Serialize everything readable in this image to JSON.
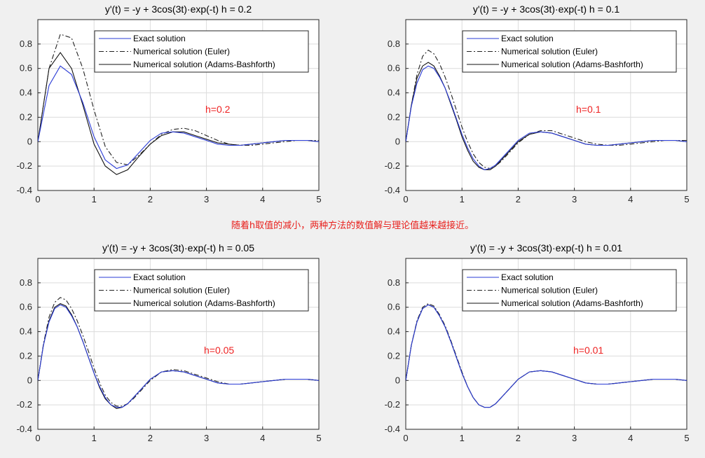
{
  "caption": "随着h取值的减小，两种方法的数值解与理论值越来越接近。",
  "colors": {
    "exact": "#2a3bd6",
    "euler": "#222222",
    "ab": "#111111",
    "annotation": "#ee2222",
    "background": "#f0f0f0",
    "axes": "#ffffff",
    "grid": "#dcdcdc"
  },
  "chart_data": [
    {
      "type": "line",
      "title": "y'(t) = -y + 3cos(3t)·exp(-t)    h = 0.2",
      "annotation": "h=0.2",
      "xlim": [
        0,
        5
      ],
      "ylim": [
        -0.4,
        1.0
      ],
      "xticks": [
        0,
        1,
        2,
        3,
        4,
        5
      ],
      "yticks": [
        -0.4,
        -0.2,
        0,
        0.2,
        0.4,
        0.6,
        0.8
      ],
      "grid": true,
      "legend_position": "top",
      "series": [
        {
          "name": "Exact solution",
          "key": "exact",
          "style": "solid",
          "x": [
            0,
            0.2,
            0.4,
            0.6,
            0.8,
            1.0,
            1.2,
            1.4,
            1.6,
            1.8,
            2.0,
            2.2,
            2.4,
            2.6,
            2.8,
            3.0,
            3.2,
            3.4,
            3.6,
            3.8,
            4.0,
            4.2,
            4.4,
            4.6,
            4.8,
            5.0
          ],
          "y": [
            0,
            0.46,
            0.62,
            0.55,
            0.32,
            0.04,
            -0.15,
            -0.22,
            -0.19,
            -0.09,
            0.01,
            0.07,
            0.08,
            0.07,
            0.04,
            0.01,
            -0.02,
            -0.03,
            -0.03,
            -0.02,
            -0.01,
            0,
            0.01,
            0.01,
            0.01,
            0
          ]
        },
        {
          "name": "Numerical solution (Euler)",
          "key": "euler",
          "style": "dashdot",
          "x": [
            0,
            0.2,
            0.4,
            0.6,
            0.8,
            1.0,
            1.2,
            1.4,
            1.6,
            1.8,
            2.0,
            2.2,
            2.4,
            2.6,
            2.8,
            3.0,
            3.2,
            3.4,
            3.6,
            3.8,
            4.0,
            4.2,
            4.4,
            4.6,
            4.8,
            5.0
          ],
          "y": [
            0,
            0.6,
            0.88,
            0.85,
            0.6,
            0.26,
            -0.04,
            -0.17,
            -0.19,
            -0.11,
            -0.02,
            0.06,
            0.1,
            0.11,
            0.09,
            0.05,
            0.01,
            -0.02,
            -0.03,
            -0.03,
            -0.02,
            -0.01,
            0,
            0.01,
            0.01,
            0.01
          ]
        },
        {
          "name": "Numerical solution (Adams-Bashforth)",
          "key": "ab",
          "style": "solid",
          "x": [
            0,
            0.2,
            0.4,
            0.6,
            0.8,
            1.0,
            1.2,
            1.4,
            1.6,
            1.8,
            2.0,
            2.2,
            2.4,
            2.6,
            2.8,
            3.0,
            3.2,
            3.4,
            3.6,
            3.8,
            4.0,
            4.2,
            4.4,
            4.6,
            4.8,
            5.0
          ],
          "y": [
            0,
            0.6,
            0.73,
            0.6,
            0.3,
            -0.02,
            -0.2,
            -0.27,
            -0.23,
            -0.12,
            -0.02,
            0.05,
            0.08,
            0.08,
            0.05,
            0.02,
            -0.01,
            -0.02,
            -0.03,
            -0.02,
            -0.01,
            0,
            0.01,
            0.01,
            0.01,
            0
          ]
        }
      ]
    },
    {
      "type": "line",
      "title": "y'(t) = -y + 3cos(3t)·exp(-t)    h = 0.1",
      "annotation": "h=0.1",
      "xlim": [
        0,
        5
      ],
      "ylim": [
        -0.4,
        1.0
      ],
      "xticks": [
        0,
        1,
        2,
        3,
        4,
        5
      ],
      "yticks": [
        -0.4,
        -0.2,
        0,
        0.2,
        0.4,
        0.6,
        0.8
      ],
      "grid": true,
      "legend_position": "top-right",
      "series": [
        {
          "name": "Exact solution",
          "key": "exact",
          "style": "solid",
          "x": [
            0,
            0.1,
            0.2,
            0.3,
            0.4,
            0.5,
            0.6,
            0.7,
            0.8,
            0.9,
            1.0,
            1.1,
            1.2,
            1.3,
            1.4,
            1.5,
            1.6,
            1.7,
            1.8,
            2.0,
            2.2,
            2.4,
            2.6,
            2.8,
            3.0,
            3.2,
            3.4,
            3.6,
            3.8,
            4.0,
            4.2,
            4.4,
            4.6,
            4.8,
            5.0
          ],
          "y": [
            0,
            0.29,
            0.48,
            0.59,
            0.62,
            0.6,
            0.53,
            0.44,
            0.32,
            0.19,
            0.06,
            -0.05,
            -0.14,
            -0.2,
            -0.23,
            -0.22,
            -0.19,
            -0.14,
            -0.09,
            0.01,
            0.07,
            0.08,
            0.07,
            0.04,
            0.01,
            -0.02,
            -0.03,
            -0.03,
            -0.02,
            -0.01,
            0,
            0.01,
            0.01,
            0.01,
            0
          ]
        },
        {
          "name": "Numerical solution (Euler)",
          "key": "euler",
          "style": "dashdot",
          "x": [
            0,
            0.1,
            0.2,
            0.3,
            0.4,
            0.5,
            0.6,
            0.7,
            0.8,
            0.9,
            1.0,
            1.1,
            1.2,
            1.3,
            1.4,
            1.5,
            1.6,
            1.7,
            1.8,
            2.0,
            2.2,
            2.4,
            2.6,
            2.8,
            3.0,
            3.2,
            3.4,
            3.6,
            3.8,
            4.0,
            4.2,
            4.4,
            4.6,
            4.8,
            5.0
          ],
          "y": [
            0,
            0.3,
            0.55,
            0.7,
            0.75,
            0.72,
            0.64,
            0.53,
            0.4,
            0.26,
            0.12,
            0,
            -0.1,
            -0.17,
            -0.21,
            -0.22,
            -0.2,
            -0.16,
            -0.11,
            -0.01,
            0.06,
            0.09,
            0.09,
            0.06,
            0.03,
            0,
            -0.02,
            -0.03,
            -0.03,
            -0.02,
            -0.01,
            0,
            0.01,
            0.01,
            0.01
          ]
        },
        {
          "name": "Numerical solution (Adams-Bashforth)",
          "key": "ab",
          "style": "solid",
          "x": [
            0,
            0.1,
            0.2,
            0.3,
            0.4,
            0.5,
            0.6,
            0.7,
            0.8,
            0.9,
            1.0,
            1.1,
            1.2,
            1.3,
            1.4,
            1.5,
            1.6,
            1.7,
            1.8,
            2.0,
            2.2,
            2.4,
            2.6,
            2.8,
            3.0,
            3.2,
            3.4,
            3.6,
            3.8,
            4.0,
            4.2,
            4.4,
            4.6,
            4.8,
            5.0
          ],
          "y": [
            0,
            0.3,
            0.52,
            0.62,
            0.65,
            0.62,
            0.54,
            0.44,
            0.31,
            0.18,
            0.04,
            -0.07,
            -0.16,
            -0.21,
            -0.23,
            -0.23,
            -0.2,
            -0.15,
            -0.1,
            0,
            0.06,
            0.08,
            0.07,
            0.04,
            0.01,
            -0.02,
            -0.03,
            -0.03,
            -0.02,
            -0.01,
            0,
            0.01,
            0.01,
            0.01,
            0
          ]
        }
      ]
    },
    {
      "type": "line",
      "title": "y'(t) = -y + 3cos(3t)·exp(-t)    h = 0.05",
      "annotation": "h=0.05",
      "xlim": [
        0,
        5
      ],
      "ylim": [
        -0.4,
        1.0
      ],
      "xticks": [
        0,
        1,
        2,
        3,
        4,
        5
      ],
      "yticks": [
        -0.4,
        -0.2,
        0,
        0.2,
        0.4,
        0.6,
        0.8
      ],
      "grid": true,
      "legend_position": "top",
      "series": [
        {
          "name": "Exact solution",
          "key": "exact",
          "style": "solid",
          "x": [
            0,
            0.1,
            0.2,
            0.3,
            0.4,
            0.5,
            0.6,
            0.7,
            0.8,
            0.9,
            1.0,
            1.1,
            1.2,
            1.3,
            1.4,
            1.5,
            1.6,
            1.7,
            1.8,
            2.0,
            2.2,
            2.4,
            2.6,
            2.8,
            3.0,
            3.2,
            3.4,
            3.6,
            3.8,
            4.0,
            4.2,
            4.4,
            4.6,
            4.8,
            5.0
          ],
          "y": [
            0,
            0.29,
            0.48,
            0.59,
            0.62,
            0.6,
            0.53,
            0.44,
            0.32,
            0.19,
            0.06,
            -0.05,
            -0.14,
            -0.2,
            -0.22,
            -0.22,
            -0.19,
            -0.14,
            -0.09,
            0.01,
            0.07,
            0.08,
            0.07,
            0.04,
            0.01,
            -0.02,
            -0.03,
            -0.03,
            -0.02,
            -0.01,
            0,
            0.01,
            0.01,
            0.01,
            0
          ]
        },
        {
          "name": "Numerical solution (Euler)",
          "key": "euler",
          "style": "dashdot",
          "x": [
            0,
            0.1,
            0.2,
            0.3,
            0.4,
            0.5,
            0.6,
            0.7,
            0.8,
            0.9,
            1.0,
            1.1,
            1.2,
            1.3,
            1.4,
            1.5,
            1.6,
            1.7,
            1.8,
            2.0,
            2.2,
            2.4,
            2.6,
            2.8,
            3.0,
            3.2,
            3.4,
            3.6,
            3.8,
            4.0,
            4.2,
            4.4,
            4.6,
            4.8,
            5.0
          ],
          "y": [
            0,
            0.3,
            0.52,
            0.64,
            0.68,
            0.66,
            0.59,
            0.49,
            0.37,
            0.24,
            0.1,
            -0.02,
            -0.12,
            -0.18,
            -0.21,
            -0.21,
            -0.19,
            -0.15,
            -0.1,
            0,
            0.07,
            0.09,
            0.08,
            0.05,
            0.02,
            -0.01,
            -0.03,
            -0.03,
            -0.02,
            -0.01,
            0,
            0.01,
            0.01,
            0.01,
            0
          ]
        },
        {
          "name": "Numerical solution (Adams-Bashforth)",
          "key": "ab",
          "style": "solid",
          "x": [
            0,
            0.1,
            0.2,
            0.3,
            0.4,
            0.5,
            0.6,
            0.7,
            0.8,
            0.9,
            1.0,
            1.1,
            1.2,
            1.3,
            1.4,
            1.5,
            1.6,
            1.7,
            1.8,
            2.0,
            2.2,
            2.4,
            2.6,
            2.8,
            3.0,
            3.2,
            3.4,
            3.6,
            3.8,
            4.0,
            4.2,
            4.4,
            4.6,
            4.8,
            5.0
          ],
          "y": [
            0,
            0.29,
            0.49,
            0.6,
            0.63,
            0.61,
            0.54,
            0.44,
            0.32,
            0.19,
            0.06,
            -0.06,
            -0.15,
            -0.2,
            -0.23,
            -0.22,
            -0.19,
            -0.14,
            -0.09,
            0.01,
            0.07,
            0.08,
            0.07,
            0.04,
            0.01,
            -0.02,
            -0.03,
            -0.03,
            -0.02,
            -0.01,
            0,
            0.01,
            0.01,
            0.01,
            0
          ]
        }
      ]
    },
    {
      "type": "line",
      "title": "y'(t) = -y + 3cos(3t)·exp(-t)    h = 0.01",
      "annotation": "h=0.01",
      "xlim": [
        0,
        5
      ],
      "ylim": [
        -0.4,
        1.0
      ],
      "xticks": [
        0,
        1,
        2,
        3,
        4,
        5
      ],
      "yticks": [
        -0.4,
        -0.2,
        0,
        0.2,
        0.4,
        0.6,
        0.8
      ],
      "grid": true,
      "legend_position": "top-right",
      "series": [
        {
          "name": "Exact solution",
          "key": "exact",
          "style": "solid",
          "x": [
            0,
            0.1,
            0.2,
            0.3,
            0.4,
            0.5,
            0.6,
            0.7,
            0.8,
            0.9,
            1.0,
            1.1,
            1.2,
            1.3,
            1.4,
            1.5,
            1.6,
            1.7,
            1.8,
            2.0,
            2.2,
            2.4,
            2.6,
            2.8,
            3.0,
            3.2,
            3.4,
            3.6,
            3.8,
            4.0,
            4.2,
            4.4,
            4.6,
            4.8,
            5.0
          ],
          "y": [
            0,
            0.29,
            0.48,
            0.59,
            0.62,
            0.6,
            0.53,
            0.44,
            0.32,
            0.19,
            0.06,
            -0.05,
            -0.14,
            -0.2,
            -0.22,
            -0.22,
            -0.19,
            -0.14,
            -0.09,
            0.01,
            0.07,
            0.08,
            0.07,
            0.04,
            0.01,
            -0.02,
            -0.03,
            -0.03,
            -0.02,
            -0.01,
            0,
            0.01,
            0.01,
            0.01,
            0
          ]
        },
        {
          "name": "Numerical solution (Euler)",
          "key": "euler",
          "style": "dashdot",
          "x": [
            0,
            0.1,
            0.2,
            0.3,
            0.4,
            0.5,
            0.6,
            0.7,
            0.8,
            0.9,
            1.0,
            1.1,
            1.2,
            1.3,
            1.4,
            1.5,
            1.6,
            1.7,
            1.8,
            2.0,
            2.2,
            2.4,
            2.6,
            2.8,
            3.0,
            3.2,
            3.4,
            3.6,
            3.8,
            4.0,
            4.2,
            4.4,
            4.6,
            4.8,
            5.0
          ],
          "y": [
            0,
            0.29,
            0.49,
            0.6,
            0.63,
            0.61,
            0.54,
            0.45,
            0.33,
            0.2,
            0.07,
            -0.05,
            -0.14,
            -0.2,
            -0.22,
            -0.22,
            -0.19,
            -0.14,
            -0.09,
            0.01,
            0.07,
            0.08,
            0.07,
            0.04,
            0.01,
            -0.02,
            -0.03,
            -0.03,
            -0.02,
            -0.01,
            0,
            0.01,
            0.01,
            0.01,
            0
          ]
        },
        {
          "name": "Numerical solution (Adams-Bashforth)",
          "key": "ab",
          "style": "solid",
          "x": [
            0,
            0.1,
            0.2,
            0.3,
            0.4,
            0.5,
            0.6,
            0.7,
            0.8,
            0.9,
            1.0,
            1.1,
            1.2,
            1.3,
            1.4,
            1.5,
            1.6,
            1.7,
            1.8,
            2.0,
            2.2,
            2.4,
            2.6,
            2.8,
            3.0,
            3.2,
            3.4,
            3.6,
            3.8,
            4.0,
            4.2,
            4.4,
            4.6,
            4.8,
            5.0
          ],
          "y": [
            0,
            0.29,
            0.48,
            0.59,
            0.62,
            0.6,
            0.53,
            0.44,
            0.32,
            0.19,
            0.06,
            -0.05,
            -0.14,
            -0.2,
            -0.22,
            -0.22,
            -0.19,
            -0.14,
            -0.09,
            0.01,
            0.07,
            0.08,
            0.07,
            0.04,
            0.01,
            -0.02,
            -0.03,
            -0.03,
            -0.02,
            -0.01,
            0,
            0.01,
            0.01,
            0.01,
            0
          ]
        }
      ]
    }
  ]
}
